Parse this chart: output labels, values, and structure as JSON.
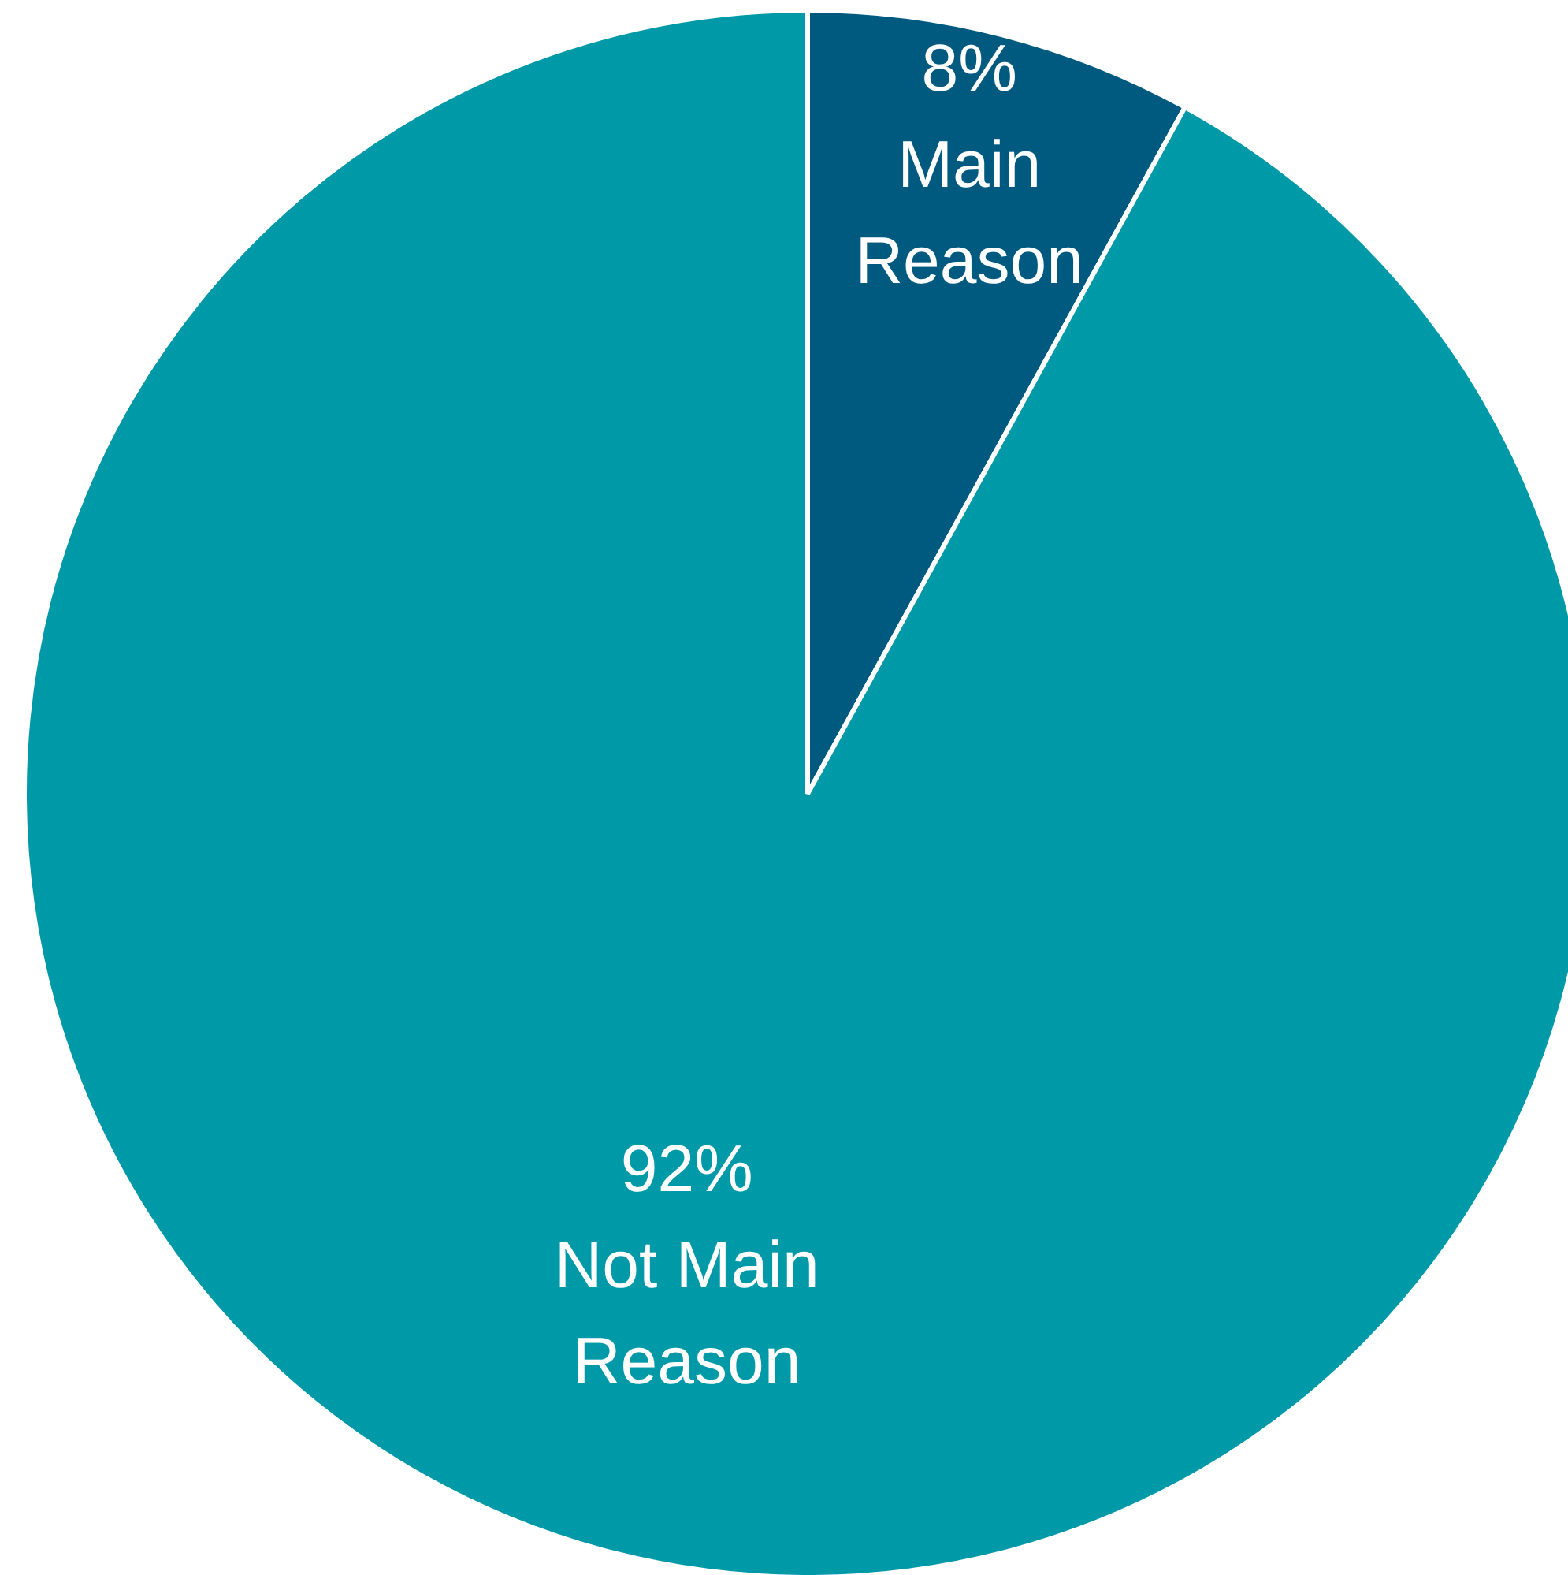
{
  "chart_data": {
    "type": "pie",
    "categories": [
      "Main Reason",
      "Not Main Reason"
    ],
    "values": [
      8,
      92
    ],
    "colors": [
      "#005a80",
      "#0099a8"
    ],
    "value_labels": [
      "8%",
      "92%"
    ]
  }
}
